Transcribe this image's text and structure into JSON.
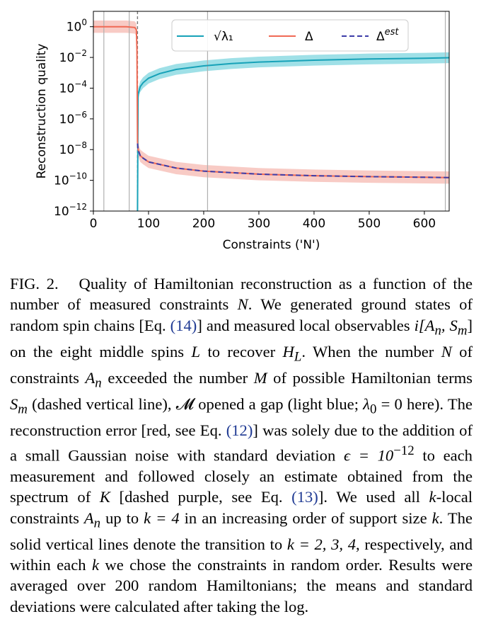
{
  "chart_data": {
    "type": "line",
    "xlabel": "Constraints ('N')",
    "ylabel": "Reconstruction quality",
    "xlim": [
      0,
      645
    ],
    "ylim_log10": [
      -12,
      1
    ],
    "y_scale": "log",
    "x_ticks": [
      0,
      100,
      200,
      300,
      400,
      500,
      600
    ],
    "y_ticks_exp": [
      0,
      -2,
      -4,
      -6,
      -8,
      -10,
      -12
    ],
    "y_tick_base": "10",
    "solid_vlines_x": [
      19,
      65,
      207,
      638
    ],
    "dashed_vline_x": 80,
    "legend_position": "top-center",
    "series": [
      {
        "name": "√λ₁",
        "color": "#17a2b8",
        "band_color": "#7fd6df",
        "x": [
          80,
          81,
          85,
          90,
          100,
          120,
          150,
          200,
          250,
          300,
          400,
          500,
          600,
          645
        ],
        "log10_y": [
          -12,
          -4.4,
          -3.9,
          -3.65,
          -3.35,
          -3.05,
          -2.78,
          -2.55,
          -2.4,
          -2.3,
          -2.18,
          -2.1,
          -2.05,
          -2.02
        ],
        "band_log10": 0.35
      },
      {
        "name": "Δ",
        "color": "#f06a55",
        "band_color": "#f6b9b1",
        "x": [
          0,
          60,
          75,
          78,
          79,
          80,
          81,
          85,
          90,
          100,
          150,
          200,
          300,
          400,
          500,
          600,
          645
        ],
        "log10_y": [
          0,
          0,
          -0.05,
          -0.2,
          -1.5,
          -7.5,
          -8,
          -8.4,
          -8.55,
          -8.8,
          -9.2,
          -9.4,
          -9.6,
          -9.7,
          -9.76,
          -9.8,
          -9.82
        ],
        "band_log10": 0.4
      },
      {
        "name": "Δest",
        "color": "#3d3da8",
        "dashed": true,
        "x": [
          80,
          81,
          85,
          90,
          100,
          150,
          200,
          300,
          400,
          500,
          600,
          645
        ],
        "log10_y": [
          -7.6,
          -8,
          -8.4,
          -8.55,
          -8.8,
          -9.2,
          -9.4,
          -9.6,
          -9.7,
          -9.76,
          -9.8,
          -9.82
        ]
      }
    ]
  },
  "caption": {
    "fig_label": "FIG. 2.",
    "s1": "Quality of Hamiltonian reconstruction as a function of the number of measured constraints",
    "s2": ". We generated ground states of random spin chains [Eq.",
    "ref14": "(14)",
    "s3": "] and measured local observables",
    "s4": "on the eight middle spins",
    "s5": "to recover",
    "s6": ". When the number",
    "s7": "of constraints",
    "s8": "exceeded the number",
    "s9": "of possible Hamiltonian terms",
    "s10": "(dashed vertical line),",
    "s11": "opened a gap (light blue;",
    "s12": "here). The reconstruction error [red, see Eq.",
    "ref12": "(12)",
    "s13": "] was solely due to the addition of a small Gaussian noise with standard deviation",
    "s14": "to each measurement and followed closely an estimate obtained from the spectrum of",
    "s15": "[dashed purple, see Eq.",
    "ref13": "(13)",
    "s16": "]. We used all",
    "s17": "-local constraints",
    "s18": "up to",
    "s19": "in an increasing order of support size",
    "s20": ". The solid vertical lines denote the transition to",
    "s21": ", respectively, and within each",
    "s22": "we chose the constraints in random order. Results were averaged over 200 random Hamiltonians; the means and standard deviations were calculated after taking the log.",
    "m_N": "N",
    "m_obs": "i[A",
    "m_n": "n",
    "m_comma": ", S",
    "m_m": "m",
    "m_close": "]",
    "m_L": "L",
    "m_HL": "H",
    "m_HLsub": "L",
    "m_A": "A",
    "m_M": "M",
    "m_S": "S",
    "m_calM": "𝓜",
    "m_lambda0": "λ",
    "m_lambda0sub": "0",
    "m_eq0": " = 0",
    "m_eps": "ϵ = 10",
    "m_eps_exp": "−12",
    "m_K": "K",
    "m_k": "k",
    "m_k4": "k = 4",
    "m_k234": "k = 2, 3, 4"
  }
}
